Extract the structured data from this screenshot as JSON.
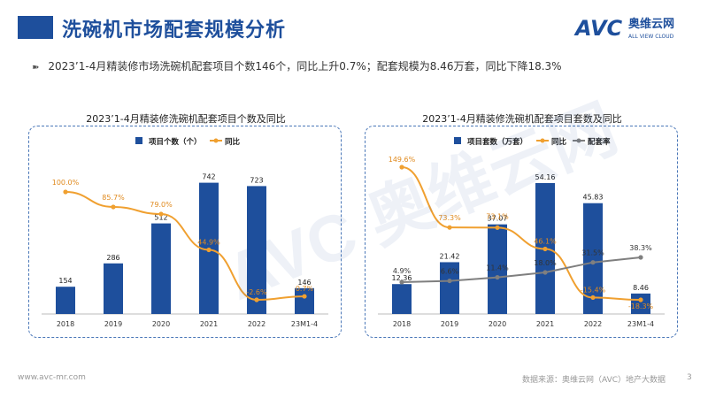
{
  "header": {
    "title": "洗碗机市场配套规模分析"
  },
  "logo": {
    "brand": "AVC",
    "cn": "奥维云网",
    "en": "ALL VIEW CLOUD"
  },
  "bullet": {
    "text": "2023’1-4月精装修市场洗碗机配套项目个数146个，同比上升0.7%；配套规模为8.46万套，同比下降18.3%"
  },
  "footer": {
    "url": "www.avc-mr.com",
    "source": "数据来源：奥维云网（AVC）地产大数据",
    "page": "3"
  },
  "watermark": {
    "text": "AVC 奥维云网"
  },
  "colors": {
    "bar": "#1e4f9c",
    "line": "#f0a030",
    "gray": "#7f7f7f"
  },
  "chart_data": [
    {
      "type": "bar",
      "title": "2023’1-4月精装修洗碗机配套项目个数及同比",
      "categories": [
        "2018",
        "2019",
        "2020",
        "2021",
        "2022",
        "23M1-4"
      ],
      "series": [
        {
          "name": "项目个数（个）",
          "kind": "bar",
          "values": [
            154,
            286,
            512,
            742,
            723,
            146
          ],
          "labels": [
            "154",
            "286",
            "512",
            "742",
            "723",
            "146"
          ]
        },
        {
          "name": "同比",
          "kind": "line",
          "values": [
            100.0,
            85.7,
            79.0,
            44.9,
            -2.6,
            0.7
          ],
          "labels": [
            "100.0%",
            "85.7%",
            "79.0%",
            "44.9%",
            "-2.6%",
            "0.7%"
          ]
        }
      ]
    },
    {
      "type": "bar",
      "title": "2023’1-4月精装修洗碗机配套项目套数及同比",
      "categories": [
        "2018",
        "2019",
        "2020",
        "2021",
        "2022",
        "23M1-4"
      ],
      "series": [
        {
          "name": "项目套数（万套）",
          "kind": "bar",
          "values": [
            12.36,
            21.42,
            37.07,
            54.16,
            45.83,
            8.46
          ],
          "labels": [
            "12.36",
            "21.42",
            "37.07",
            "54.16",
            "45.83",
            "8.46"
          ]
        },
        {
          "name": "同比",
          "kind": "line",
          "values": [
            149.6,
            73.3,
            73.1,
            46.1,
            -15.4,
            -18.3
          ],
          "labels": [
            "149.6%",
            "73.3%",
            "73.1%",
            "46.1%",
            "-15.4%",
            "-18.3%"
          ]
        },
        {
          "name": "配套率",
          "kind": "line",
          "values": [
            4.9,
            6.6,
            11.4,
            18.0,
            31.5,
            38.3
          ],
          "labels": [
            "4.9%",
            "6.6%",
            "11.4%",
            "18.0%",
            "31.5%",
            "38.3%"
          ]
        }
      ]
    }
  ]
}
